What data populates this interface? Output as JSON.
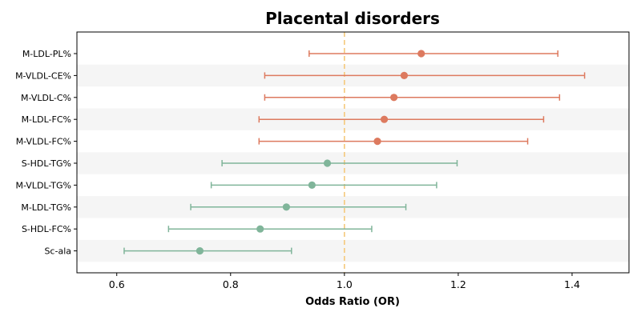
{
  "chart_data": {
    "type": "forest",
    "title": "Placental disorders",
    "xlabel": "Odds Ratio (OR)",
    "xlim": [
      0.53,
      1.5
    ],
    "xticks": [
      0.6,
      0.8,
      1.0,
      1.2,
      1.4
    ],
    "xtick_labels": [
      "0.6",
      "0.8",
      "1.0",
      "1.2",
      "1.4"
    ],
    "reference_line": 1.0,
    "colors": {
      "positive": "#dd7a5f",
      "negative": "#80b59a",
      "reference": "#f5c97a",
      "band": "#f5f5f5"
    },
    "rows": [
      {
        "label": "M-LDL-PL%",
        "or": 1.135,
        "low": 0.938,
        "high": 1.375,
        "group": "positive"
      },
      {
        "label": "M-VLDL-CE%",
        "or": 1.105,
        "low": 0.86,
        "high": 1.422,
        "group": "positive"
      },
      {
        "label": "M-VLDL-C%",
        "or": 1.087,
        "low": 0.86,
        "high": 1.378,
        "group": "positive"
      },
      {
        "label": "M-LDL-FC%",
        "or": 1.07,
        "low": 0.85,
        "high": 1.35,
        "group": "positive"
      },
      {
        "label": "M-VLDL-FC%",
        "or": 1.058,
        "low": 0.85,
        "high": 1.322,
        "group": "positive"
      },
      {
        "label": "S-HDL-TG%",
        "or": 0.97,
        "low": 0.785,
        "high": 1.198,
        "group": "negative"
      },
      {
        "label": "M-VLDL-TG%",
        "or": 0.943,
        "low": 0.766,
        "high": 1.162,
        "group": "negative"
      },
      {
        "label": "M-LDL-TG%",
        "or": 0.898,
        "low": 0.73,
        "high": 1.108,
        "group": "negative"
      },
      {
        "label": "S-HDL-FC%",
        "or": 0.852,
        "low": 0.691,
        "high": 1.048,
        "group": "negative"
      },
      {
        "label": "Sc-ala",
        "or": 0.746,
        "low": 0.613,
        "high": 0.907,
        "group": "negative"
      }
    ]
  }
}
